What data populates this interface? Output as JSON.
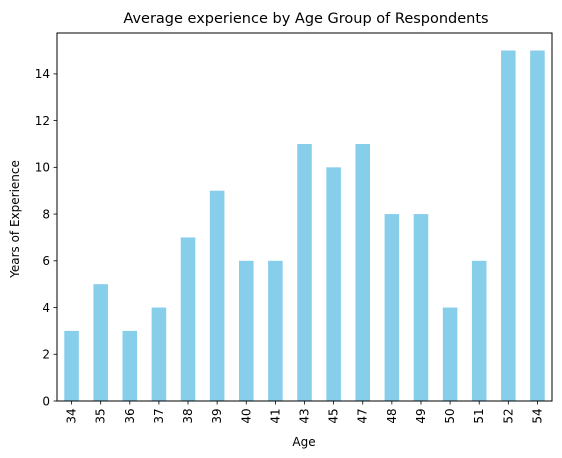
{
  "chart_data": {
    "type": "bar",
    "title": "Average experience by Age Group of Respondents",
    "xlabel": "Age",
    "ylabel": "Years of Experience",
    "categories": [
      "34",
      "35",
      "36",
      "37",
      "38",
      "39",
      "40",
      "41",
      "43",
      "45",
      "47",
      "48",
      "49",
      "50",
      "51",
      "52",
      "54"
    ],
    "values": [
      3,
      5,
      3,
      4,
      7,
      9,
      6,
      6,
      11,
      10,
      11,
      8,
      8,
      4,
      6,
      15,
      15
    ],
    "ylim": [
      0,
      15.75
    ],
    "yticks": [
      0,
      2,
      4,
      6,
      8,
      10,
      12,
      14
    ],
    "bar_color": "#87CEEB",
    "grid": false,
    "legend": "none"
  }
}
